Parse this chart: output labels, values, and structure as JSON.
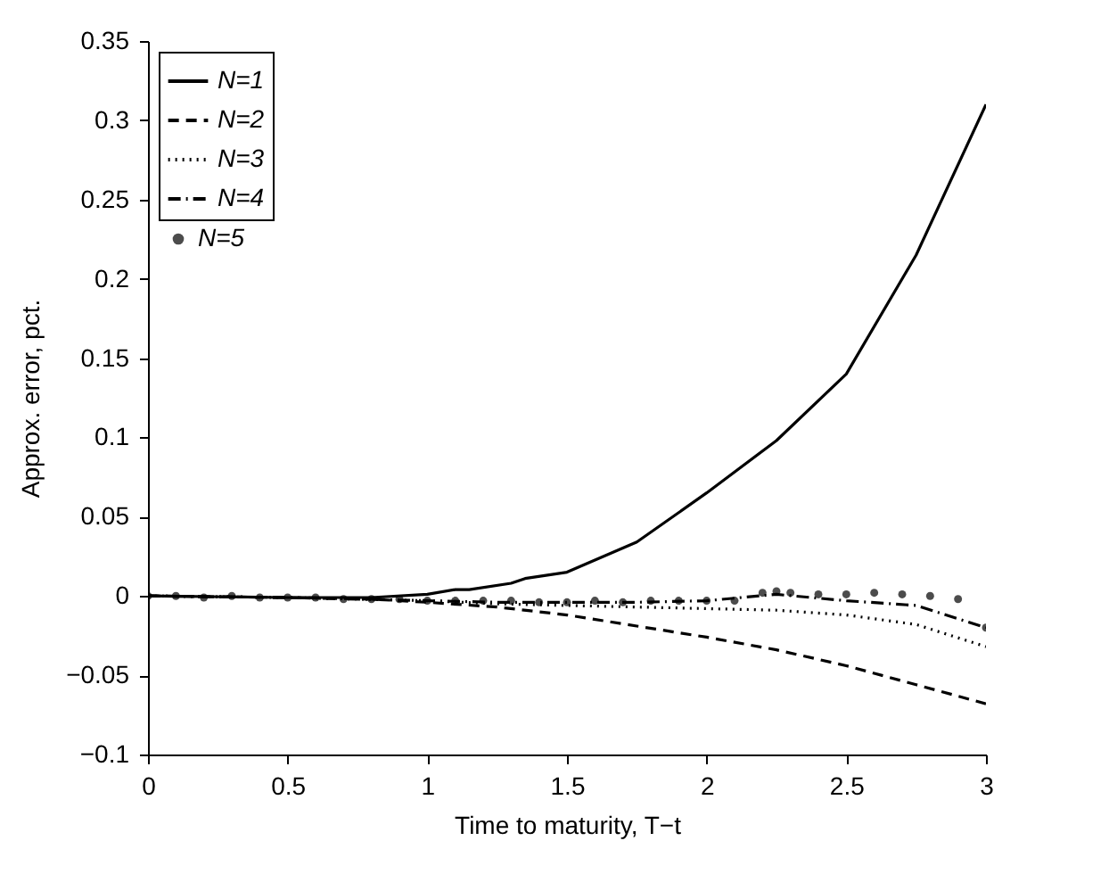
{
  "chart_data": {
    "type": "line",
    "xlabel": "Time to maturity, T−t",
    "ylabel": "Approx. error, pct.",
    "xlim": [
      0,
      3
    ],
    "ylim": [
      -0.1,
      0.35
    ],
    "xticks": [
      0,
      0.5,
      1,
      1.5,
      2,
      2.5,
      3
    ],
    "yticks": [
      -0.1,
      -0.05,
      0,
      0.05,
      0.1,
      0.15,
      0.2,
      0.25,
      0.3,
      0.35
    ],
    "grid": false,
    "legend": "top left",
    "series": [
      {
        "name": "N=1",
        "color": "#000000",
        "line_style": "solid",
        "x": [
          0,
          0.5,
          0.8,
          1.0,
          1.1,
          1.15,
          1.3,
          1.35,
          1.5,
          1.75,
          2.0,
          2.25,
          2.5,
          2.75,
          3.0
        ],
        "values": [
          0,
          -0.001,
          -0.001,
          0.001,
          0.004,
          0.004,
          0.008,
          0.011,
          0.015,
          0.034,
          0.065,
          0.098,
          0.14,
          0.215,
          0.31
        ]
      },
      {
        "name": "N=2",
        "color": "#000000",
        "line_style": "dashed",
        "x": [
          0,
          0.5,
          0.8,
          1.0,
          1.25,
          1.5,
          1.75,
          2.0,
          2.25,
          2.5,
          2.75,
          3.0
        ],
        "values": [
          0,
          -0.001,
          -0.002,
          -0.004,
          -0.007,
          -0.012,
          -0.019,
          -0.026,
          -0.034,
          -0.044,
          -0.056,
          -0.068
        ]
      },
      {
        "name": "N=3",
        "color": "#000000",
        "line_style": "dotted",
        "x": [
          0,
          0.5,
          1.0,
          1.25,
          1.5,
          1.75,
          2.0,
          2.25,
          2.5,
          2.75,
          3.0
        ],
        "values": [
          0,
          -0.001,
          -0.003,
          -0.005,
          -0.006,
          -0.007,
          -0.008,
          -0.009,
          -0.012,
          -0.018,
          -0.032
        ]
      },
      {
        "name": "N=4",
        "color": "#000000",
        "line_style": "dashdot",
        "x": [
          0,
          0.5,
          1.0,
          1.25,
          1.5,
          1.75,
          2.0,
          2.25,
          2.5,
          2.75,
          3.0
        ],
        "values": [
          0,
          -0.001,
          -0.003,
          -0.004,
          -0.004,
          -0.004,
          -0.003,
          0.001,
          -0.003,
          -0.006,
          -0.02
        ]
      },
      {
        "name": "N=5",
        "color": "#000000",
        "type": "scatter",
        "marker": "circle",
        "x": [
          0,
          0.1,
          0.2,
          0.3,
          0.4,
          0.5,
          0.6,
          0.7,
          0.8,
          0.9,
          1.0,
          1.1,
          1.2,
          1.3,
          1.4,
          1.5,
          1.6,
          1.7,
          1.8,
          1.9,
          2.0,
          2.1,
          2.2,
          2.25,
          2.3,
          2.4,
          2.5,
          2.6,
          2.7,
          2.8,
          2.9,
          3.0
        ],
        "values": [
          0,
          0,
          -0.001,
          0,
          -0.001,
          -0.001,
          -0.001,
          -0.002,
          -0.002,
          -0.002,
          -0.003,
          -0.003,
          -0.003,
          -0.003,
          -0.004,
          -0.004,
          -0.003,
          -0.004,
          -0.003,
          -0.003,
          -0.003,
          -0.003,
          0.002,
          0.003,
          0.002,
          0.001,
          0.001,
          0.002,
          0.001,
          0,
          -0.002,
          -0.02
        ]
      }
    ]
  }
}
